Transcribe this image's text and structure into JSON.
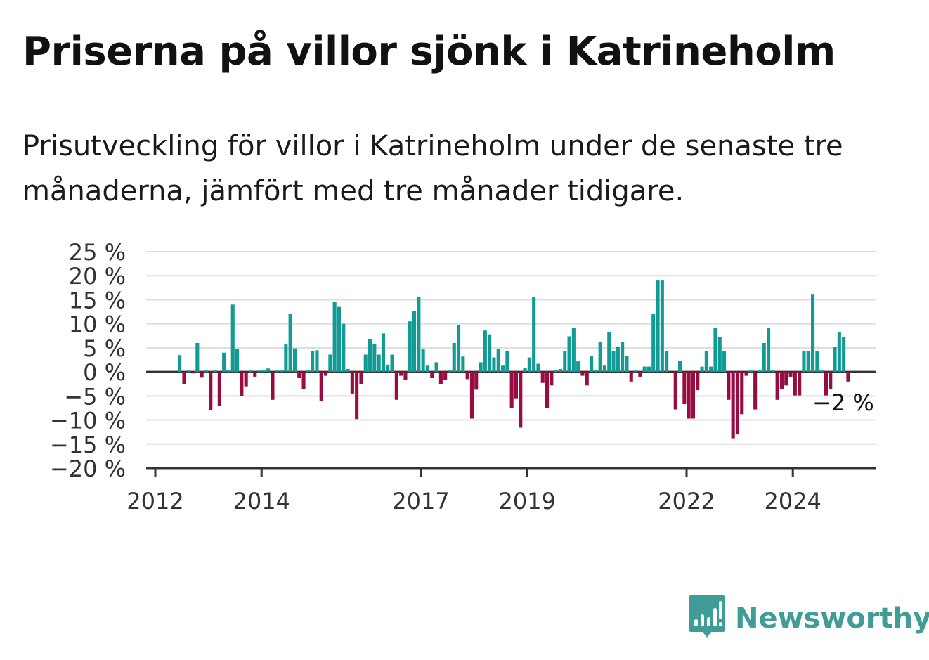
{
  "title": "Priserna på villor sjönk i Katrineholm",
  "subtitle": "Prisutveckling för villor i Katrineholm under de senaste tre månaderna, jämfört med tre månader tidigare.",
  "brand": {
    "name": "Newsworthy",
    "color": "#3f9c97",
    "icon": "chart-speech-bubble-icon"
  },
  "colors": {
    "positive": "#129b94",
    "negative": "#980c41",
    "grid": "#dddddd",
    "axis": "#333333"
  },
  "chart_data": {
    "type": "bar",
    "x_start": "2012-01",
    "interval": "month",
    "ylim": [
      -20,
      25
    ],
    "y_ticks": [
      {
        "value": 25,
        "label": "25 %"
      },
      {
        "value": 20,
        "label": "20 %"
      },
      {
        "value": 15,
        "label": "15 %"
      },
      {
        "value": 10,
        "label": "10 %"
      },
      {
        "value": 5,
        "label": "5 %"
      },
      {
        "value": 0,
        "label": "0 %"
      },
      {
        "value": -5,
        "label": "−5 %"
      },
      {
        "value": -10,
        "label": "−10 %"
      },
      {
        "value": -15,
        "label": "−15 %"
      },
      {
        "value": -20,
        "label": "−20 %"
      }
    ],
    "x_ticks": [
      {
        "year": 2012,
        "label": "2012"
      },
      {
        "year": 2014,
        "label": "2014"
      },
      {
        "year": 2017,
        "label": "2017"
      },
      {
        "year": 2019,
        "label": "2019"
      },
      {
        "year": 2022,
        "label": "2022"
      },
      {
        "year": 2024,
        "label": "2024"
      }
    ],
    "values": [
      null,
      null,
      null,
      null,
      null,
      3.5,
      -2.5,
      0.3,
      -0.3,
      6,
      -1.2,
      0.3,
      -8,
      0.3,
      -7,
      4,
      0.3,
      14,
      4.8,
      -5,
      -3,
      0.3,
      -1,
      0.3,
      0.3,
      0.7,
      -5.8,
      0.3,
      0.3,
      5.7,
      12,
      4.9,
      -1.3,
      -3.6,
      0.3,
      4.4,
      4.5,
      -6,
      -0.8,
      3.6,
      14.5,
      13.5,
      10,
      0.6,
      -4.5,
      -9.8,
      -2.5,
      3.6,
      6.8,
      5.8,
      3.6,
      8,
      1.5,
      3.6,
      -5.8,
      -0.8,
      -1.7,
      10.5,
      12.7,
      15.5,
      4.7,
      1.3,
      -1.3,
      2,
      -2.5,
      -1.7,
      0.3,
      6,
      9.7,
      3.2,
      -1.5,
      -9.7,
      -3.7,
      2,
      8.6,
      7.8,
      3,
      4.8,
      1.3,
      4.4,
      -7.5,
      -5.5,
      -11.6,
      0.8,
      3,
      15.6,
      1.7,
      -2.3,
      -7.5,
      -2.8,
      0.3,
      0.6,
      4.3,
      7.4,
      9.2,
      2.2,
      -0.8,
      -2.8,
      3.3,
      0.3,
      6.2,
      1.3,
      8.2,
      4.3,
      5.2,
      6.2,
      3.3,
      -2,
      0.3,
      -1,
      1.1,
      1.1,
      12,
      19,
      19,
      4.3,
      null,
      -7.8,
      2.3,
      -6.7,
      -9.7,
      -9.7,
      -3.8,
      1.1,
      4.3,
      1.1,
      9.2,
      7.2,
      4.3,
      -5.8,
      -13.8,
      -13,
      -8.8,
      -0.8,
      0.3,
      -7.8,
      0.3,
      6,
      9.2,
      0.3,
      -5.8,
      -3.6,
      -2.8,
      -1,
      -4.9,
      -4.9,
      4.3,
      4.3,
      16.2,
      4.3,
      0.3,
      -4.9,
      -3.6,
      5.2,
      8.2,
      7.2,
      -2
    ],
    "annotation": {
      "label": "−2 %",
      "index": 156
    }
  }
}
